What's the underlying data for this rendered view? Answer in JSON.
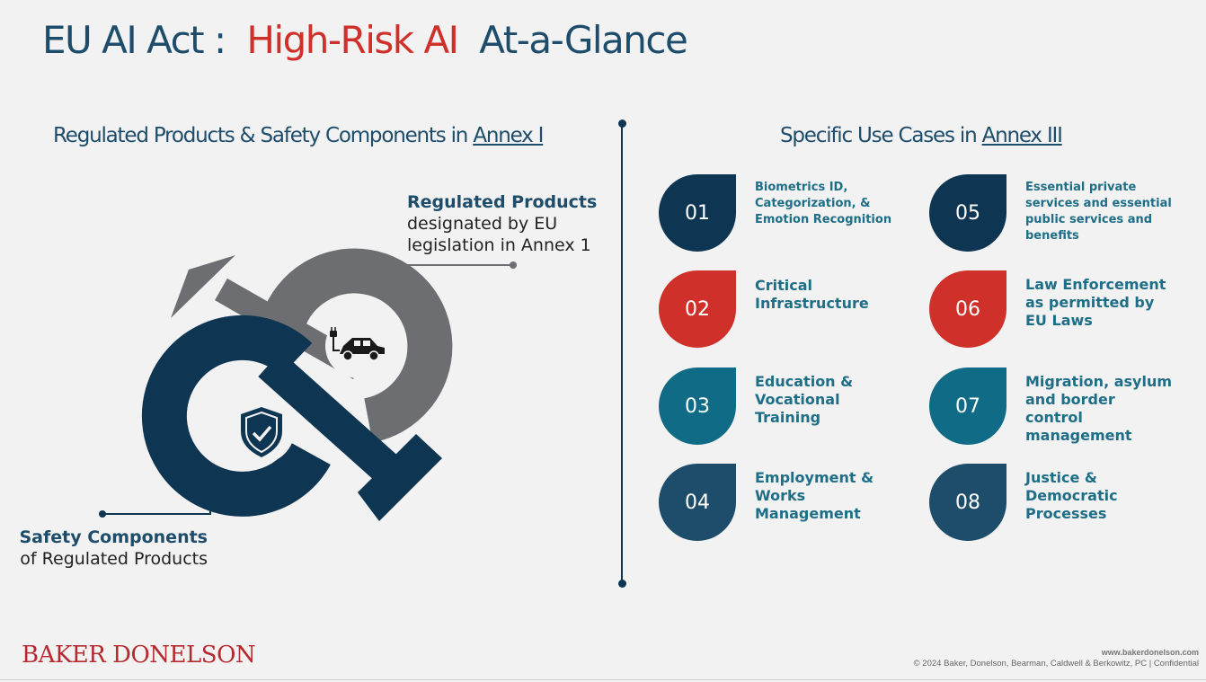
{
  "header": {
    "title_prefix": "EU AI Act :",
    "title_highlight": "High-Risk AI",
    "title_suffix": "At-a-Glance"
  },
  "left_section": {
    "heading_prefix": "Regulated Products & Safety Components in",
    "heading_link": "Annex I",
    "regulated_products_bold": "Regulated Products",
    "regulated_products_rest": "designated by EU legislation in Annex 1",
    "safety_components_bold": "Safety Components",
    "safety_components_rest": "of Regulated Products",
    "icons": [
      "electric-car-icon",
      "shield-check-icon"
    ],
    "colors": {
      "navy": "#0e3552",
      "gray": "#6d6e71"
    }
  },
  "right_section": {
    "heading_prefix": "Specific Use Cases in",
    "heading_link": "Annex III",
    "use_cases": [
      {
        "number": "01",
        "label": "Biometrics ID, Categorization, & Emotion Recognition",
        "color": "#0e3552"
      },
      {
        "number": "02",
        "label": "Critical Infrastructure",
        "color": "#d0302a"
      },
      {
        "number": "03",
        "label": "Education & Vocational Training",
        "color": "#0f6b86"
      },
      {
        "number": "04",
        "label": "Employment & Works Management",
        "color": "#1e4c6b"
      },
      {
        "number": "05",
        "label": "Essential private services and essential public services and benefits",
        "color": "#0e3552"
      },
      {
        "number": "06",
        "label": "Law Enforcement as permitted by EU Laws",
        "color": "#d0302a"
      },
      {
        "number": "07",
        "label": "Migration, asylum and border control management",
        "color": "#0f6b86"
      },
      {
        "number": "08",
        "label": "Justice & Democratic Processes",
        "color": "#1e4c6b"
      }
    ]
  },
  "footer": {
    "logo": "BAKER DONELSON",
    "url": "www.bakerdonelson.com",
    "copyright": "© 2024 Baker, Donelson, Bearman, Caldwell & Berkowitz, PC | Confidential"
  }
}
